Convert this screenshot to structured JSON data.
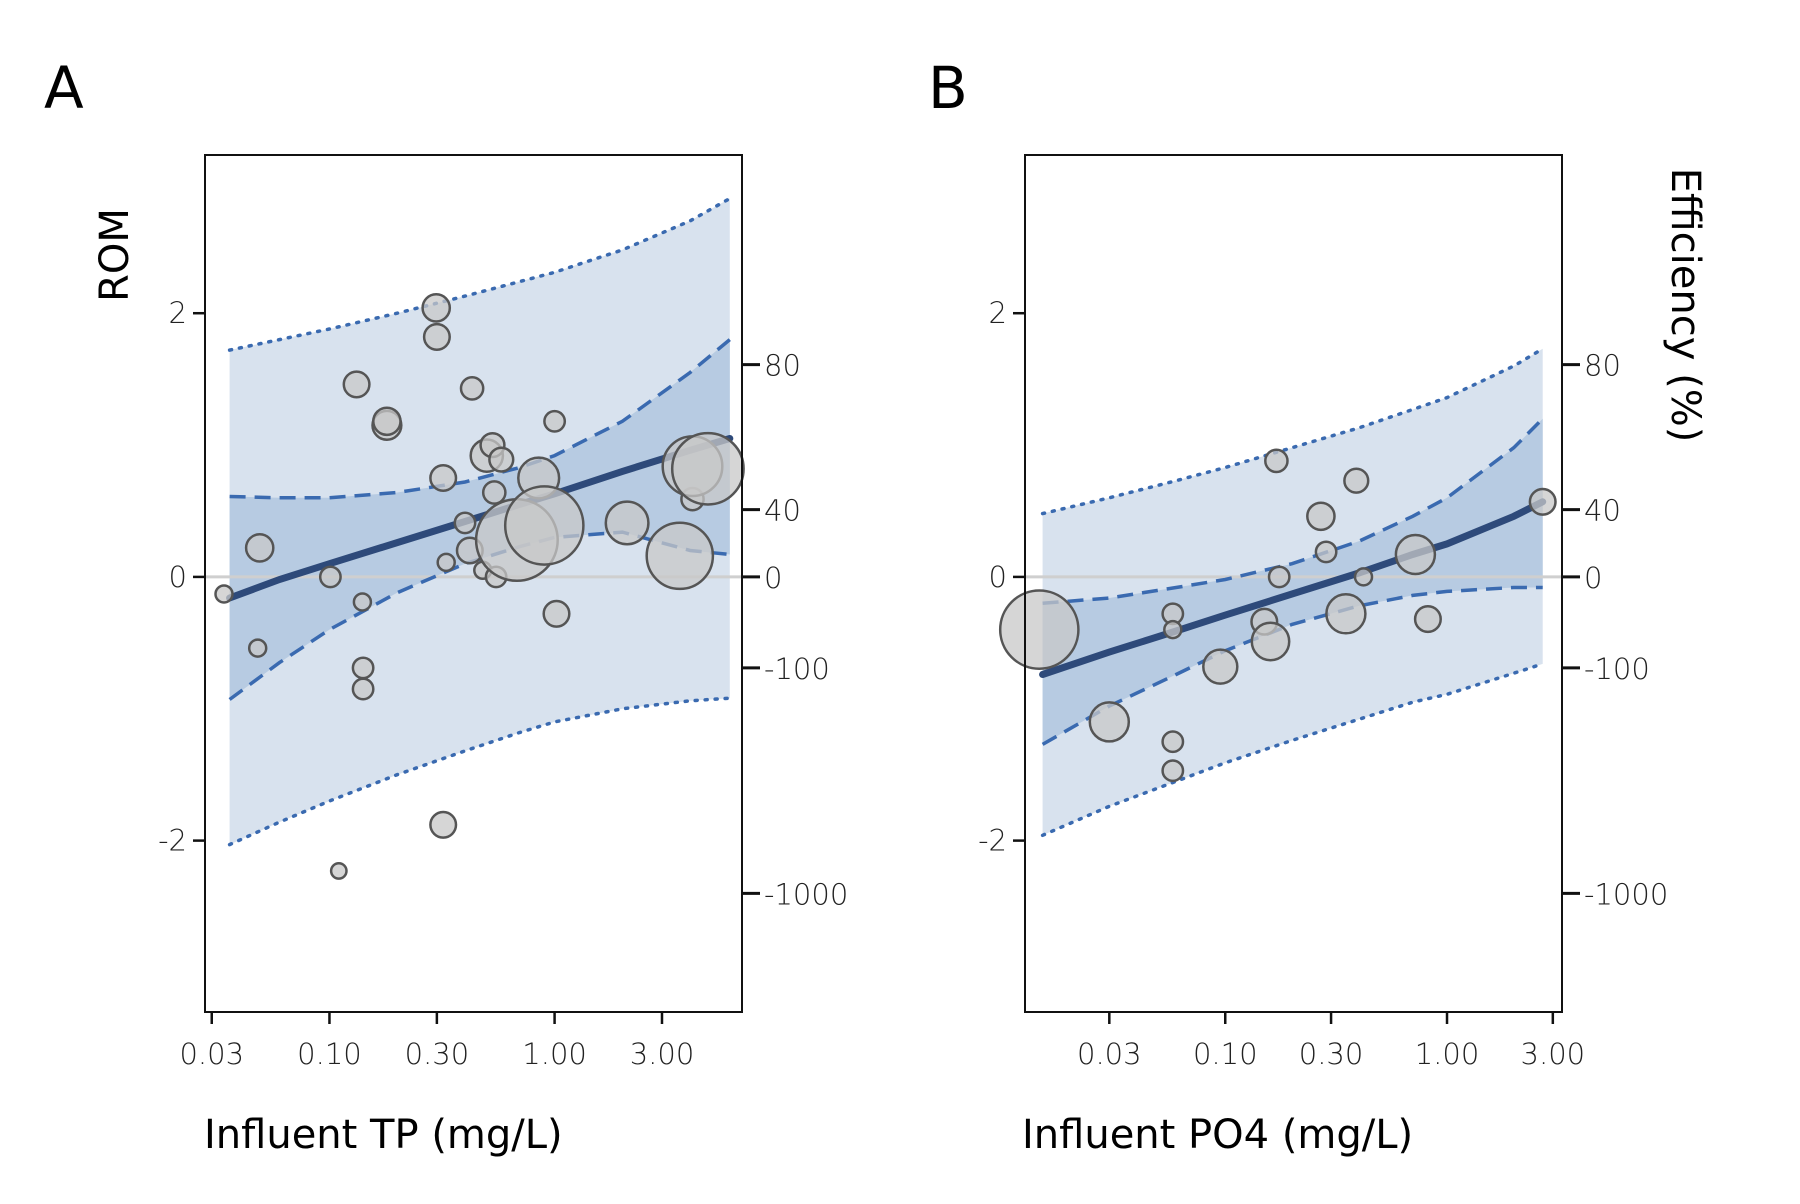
{
  "figure": {
    "colors": {
      "outer_band": "#d8e2ee",
      "inner_band": "#b7cbe2",
      "fit_line": "#2e4a7a",
      "ci_line": "#3a6ab0",
      "point_fill": "#c8c8c8",
      "point_stroke": "#555555",
      "zero_line": "#cfcfcf"
    },
    "right_axis_title": "Efficiency (%)"
  },
  "chart_data": [
    {
      "type": "scatter",
      "panel": "A",
      "xlabel": "Influent TP (mg/L)",
      "ylabel": "ROM",
      "x_scale": "log",
      "xlim": [
        0.028,
        6.8
      ],
      "ylim": [
        -3.3,
        3.2
      ],
      "x_ticks": [
        0.03,
        0.1,
        0.3,
        1.0,
        3.0
      ],
      "x_tick_labels": [
        "0.03",
        "0.10",
        "0.30",
        "1.00",
        "3.00"
      ],
      "y_ticks": [
        -2,
        0,
        2
      ],
      "y_tick_labels": [
        "-2",
        "0",
        "2"
      ],
      "y2_ticks": [
        {
          "rom": 1.61,
          "label": "80"
        },
        {
          "rom": 0.51,
          "label": "40"
        },
        {
          "rom": 0.0,
          "label": "0"
        },
        {
          "rom": -0.69,
          "label": "-100"
        },
        {
          "rom": -2.4,
          "label": "-1000"
        }
      ],
      "fit": {
        "x": [
          0.036,
          0.06,
          0.1,
          0.2,
          0.4,
          0.7,
          1.0,
          2.0,
          4.0,
          6.0
        ],
        "y": [
          -0.16,
          -0.02,
          0.1,
          0.26,
          0.42,
          0.55,
          0.63,
          0.8,
          0.96,
          1.05
        ]
      },
      "ci_upper": {
        "x": [
          0.036,
          0.06,
          0.1,
          0.2,
          0.4,
          0.7,
          1.0,
          2.0,
          4.0,
          6.0
        ],
        "y": [
          0.61,
          0.6,
          0.6,
          0.64,
          0.72,
          0.83,
          0.92,
          1.18,
          1.55,
          1.8
        ]
      },
      "ci_lower": {
        "x": [
          0.036,
          0.06,
          0.1,
          0.2,
          0.4,
          0.7,
          1.0,
          2.0,
          4.0,
          6.0
        ],
        "y": [
          -0.93,
          -0.65,
          -0.4,
          -0.12,
          0.1,
          0.23,
          0.3,
          0.34,
          0.2,
          0.17
        ]
      },
      "pi_upper": {
        "x": [
          0.036,
          0.06,
          0.1,
          0.2,
          0.4,
          0.7,
          1.0,
          2.0,
          4.0,
          6.0
        ],
        "y": [
          1.72,
          1.8,
          1.88,
          2.0,
          2.13,
          2.24,
          2.31,
          2.48,
          2.7,
          2.87
        ]
      },
      "pi_lower": {
        "x": [
          0.036,
          0.06,
          0.1,
          0.2,
          0.4,
          0.7,
          1.0,
          2.0,
          4.0,
          6.0
        ],
        "y": [
          -2.03,
          -1.86,
          -1.7,
          -1.5,
          -1.32,
          -1.18,
          -1.1,
          -1.0,
          -0.94,
          -0.92
        ]
      },
      "points": [
        {
          "x": 0.034,
          "y": -0.13,
          "size": 1.0
        },
        {
          "x": 0.048,
          "y": -0.54,
          "size": 1.0
        },
        {
          "x": 0.049,
          "y": 0.22,
          "size": 1.6
        },
        {
          "x": 0.101,
          "y": 0.0,
          "size": 1.2
        },
        {
          "x": 0.11,
          "y": -2.23,
          "size": 0.9
        },
        {
          "x": 0.132,
          "y": 1.46,
          "size": 1.5
        },
        {
          "x": 0.14,
          "y": -0.19,
          "size": 1.0
        },
        {
          "x": 0.141,
          "y": -0.69,
          "size": 1.2
        },
        {
          "x": 0.141,
          "y": -0.85,
          "size": 1.2
        },
        {
          "x": 0.18,
          "y": 1.15,
          "size": 1.7
        },
        {
          "x": 0.18,
          "y": 1.18,
          "size": 1.6
        },
        {
          "x": 0.298,
          "y": 2.04,
          "size": 1.6
        },
        {
          "x": 0.3,
          "y": 1.82,
          "size": 1.5
        },
        {
          "x": 0.32,
          "y": 0.75,
          "size": 1.5
        },
        {
          "x": 0.32,
          "y": -1.88,
          "size": 1.5
        },
        {
          "x": 0.33,
          "y": 0.11,
          "size": 1.0
        },
        {
          "x": 0.4,
          "y": 0.41,
          "size": 1.2
        },
        {
          "x": 0.42,
          "y": 0.2,
          "size": 1.5
        },
        {
          "x": 0.43,
          "y": 1.43,
          "size": 1.3
        },
        {
          "x": 0.48,
          "y": 0.05,
          "size": 1.0
        },
        {
          "x": 0.5,
          "y": 0.92,
          "size": 1.9
        },
        {
          "x": 0.53,
          "y": 1.0,
          "size": 1.4
        },
        {
          "x": 0.54,
          "y": 0.64,
          "size": 1.3
        },
        {
          "x": 0.55,
          "y": 0.0,
          "size": 1.2
        },
        {
          "x": 0.58,
          "y": 0.89,
          "size": 1.4
        },
        {
          "x": 0.68,
          "y": 0.28,
          "size": 4.8
        },
        {
          "x": 0.85,
          "y": 0.75,
          "size": 2.4
        },
        {
          "x": 0.9,
          "y": 0.39,
          "size": 4.6
        },
        {
          "x": 1.0,
          "y": 1.18,
          "size": 1.2
        },
        {
          "x": 1.02,
          "y": -0.28,
          "size": 1.5
        },
        {
          "x": 2.1,
          "y": 0.41,
          "size": 2.5
        },
        {
          "x": 3.6,
          "y": 0.16,
          "size": 3.9
        },
        {
          "x": 4.1,
          "y": 0.59,
          "size": 1.3
        },
        {
          "x": 4.1,
          "y": 0.84,
          "size": 3.5
        },
        {
          "x": 4.8,
          "y": 0.82,
          "size": 4.2
        }
      ]
    },
    {
      "type": "scatter",
      "panel": "B",
      "xlabel": "Influent PO4 (mg/L)",
      "ylabel": "",
      "y2label": "Efficiency (%)",
      "x_scale": "log",
      "xlim": [
        0.0125,
        3.3
      ],
      "ylim": [
        -3.3,
        3.2
      ],
      "x_ticks": [
        0.03,
        0.1,
        0.3,
        1.0,
        3.0
      ],
      "x_tick_labels": [
        "0.03",
        "0.10",
        "0.30",
        "1.00",
        "3.00"
      ],
      "y_ticks": [
        -2,
        0,
        2
      ],
      "y_tick_labels": [
        "-2",
        "0",
        "2"
      ],
      "y2_ticks": [
        {
          "rom": 1.61,
          "label": "80"
        },
        {
          "rom": 0.51,
          "label": "40"
        },
        {
          "rom": 0.0,
          "label": "0"
        },
        {
          "rom": -0.69,
          "label": "-100"
        },
        {
          "rom": -2.4,
          "label": "-1000"
        }
      ],
      "fit": {
        "x": [
          0.015,
          0.03,
          0.06,
          0.1,
          0.2,
          0.4,
          0.7,
          1.0,
          2.0,
          2.7
        ],
        "y": [
          -0.74,
          -0.57,
          -0.41,
          -0.29,
          -0.13,
          0.03,
          0.17,
          0.25,
          0.46,
          0.57
        ]
      },
      "ci_upper": {
        "x": [
          0.015,
          0.03,
          0.06,
          0.1,
          0.2,
          0.4,
          0.7,
          1.0,
          2.0,
          2.7
        ],
        "y": [
          -0.2,
          -0.16,
          -0.08,
          -0.02,
          0.1,
          0.27,
          0.46,
          0.6,
          0.98,
          1.2
        ]
      },
      "ci_lower": {
        "x": [
          0.015,
          0.03,
          0.06,
          0.1,
          0.2,
          0.4,
          0.7,
          1.0,
          2.0,
          2.7
        ],
        "y": [
          -1.27,
          -0.98,
          -0.74,
          -0.56,
          -0.36,
          -0.22,
          -0.14,
          -0.11,
          -0.08,
          -0.08
        ]
      },
      "pi_upper": {
        "x": [
          0.015,
          0.03,
          0.06,
          0.1,
          0.2,
          0.4,
          0.7,
          1.0,
          2.0,
          2.7
        ],
        "y": [
          0.48,
          0.6,
          0.73,
          0.83,
          0.98,
          1.13,
          1.27,
          1.36,
          1.6,
          1.73
        ]
      },
      "pi_lower": {
        "x": [
          0.015,
          0.03,
          0.06,
          0.1,
          0.2,
          0.4,
          0.7,
          1.0,
          2.0,
          2.7
        ],
        "y": [
          -1.96,
          -1.74,
          -1.55,
          -1.41,
          -1.24,
          -1.08,
          -0.95,
          -0.89,
          -0.73,
          -0.66
        ]
      },
      "points": [
        {
          "x": 0.0145,
          "y": -0.4,
          "size": 4.6
        },
        {
          "x": 0.03,
          "y": -1.1,
          "size": 2.3
        },
        {
          "x": 0.058,
          "y": -0.28,
          "size": 1.2
        },
        {
          "x": 0.058,
          "y": -0.4,
          "size": 1.0
        },
        {
          "x": 0.058,
          "y": -1.25,
          "size": 1.2
        },
        {
          "x": 0.058,
          "y": -1.47,
          "size": 1.2
        },
        {
          "x": 0.095,
          "y": -0.68,
          "size": 2.0
        },
        {
          "x": 0.15,
          "y": -0.34,
          "size": 1.5
        },
        {
          "x": 0.16,
          "y": -0.49,
          "size": 2.2
        },
        {
          "x": 0.17,
          "y": 0.88,
          "size": 1.3
        },
        {
          "x": 0.175,
          "y": 0.0,
          "size": 1.2
        },
        {
          "x": 0.27,
          "y": 0.46,
          "size": 1.6
        },
        {
          "x": 0.285,
          "y": 0.19,
          "size": 1.2
        },
        {
          "x": 0.35,
          "y": -0.28,
          "size": 2.3
        },
        {
          "x": 0.39,
          "y": 0.73,
          "size": 1.4
        },
        {
          "x": 0.42,
          "y": 0.0,
          "size": 1.0
        },
        {
          "x": 0.72,
          "y": 0.17,
          "size": 2.3
        },
        {
          "x": 0.82,
          "y": -0.32,
          "size": 1.5
        },
        {
          "x": 2.7,
          "y": 0.57,
          "size": 1.5
        }
      ]
    }
  ]
}
